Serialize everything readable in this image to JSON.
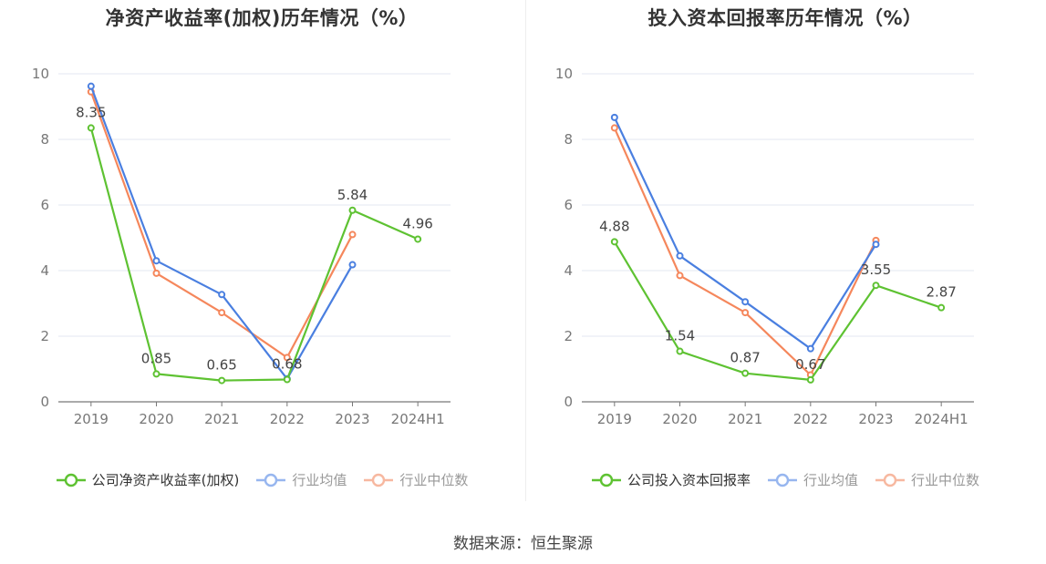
{
  "chart_data": [
    {
      "type": "line",
      "title": "净资产收益率(加权)历年情况（%）",
      "categories": [
        "2019",
        "2020",
        "2021",
        "2022",
        "2023",
        "2024H1"
      ],
      "ylim": [
        0,
        10
      ],
      "yticks": [
        0,
        2,
        4,
        6,
        8,
        10
      ],
      "grid": true,
      "legend_position": "bottom",
      "series": [
        {
          "name": "公司净资产收益率(加权)",
          "color": "#5ec232",
          "values": [
            8.35,
            0.85,
            0.65,
            0.68,
            5.84,
            4.96
          ],
          "labels": [
            "8.35",
            "0.85",
            "0.65",
            "0.68",
            "5.84",
            "4.96"
          ]
        },
        {
          "name": "行业均值",
          "color": "#4a7fe0",
          "values": [
            9.62,
            4.3,
            3.27,
            0.7,
            4.18,
            null
          ]
        },
        {
          "name": "行业中位数",
          "color": "#f5875c",
          "values": [
            9.45,
            3.92,
            2.72,
            1.35,
            5.1,
            null
          ]
        }
      ]
    },
    {
      "type": "line",
      "title": "投入资本回报率历年情况（%）",
      "categories": [
        "2019",
        "2020",
        "2021",
        "2022",
        "2023",
        "2024H1"
      ],
      "ylim": [
        0,
        10
      ],
      "yticks": [
        0,
        2,
        4,
        6,
        8,
        10
      ],
      "grid": true,
      "legend_position": "bottom",
      "series": [
        {
          "name": "公司投入资本回报率",
          "color": "#5ec232",
          "values": [
            4.88,
            1.54,
            0.87,
            0.67,
            3.55,
            2.87
          ],
          "labels": [
            "4.88",
            "1.54",
            "0.87",
            "0.67",
            "3.55",
            "2.87"
          ]
        },
        {
          "name": "行业均值",
          "color": "#4a7fe0",
          "values": [
            8.67,
            4.45,
            3.05,
            1.62,
            4.8,
            null
          ]
        },
        {
          "name": "行业中位数",
          "color": "#f5875c",
          "values": [
            8.35,
            3.85,
            2.72,
            0.82,
            4.92,
            null
          ]
        }
      ]
    }
  ],
  "source_text": "数据来源：恒生聚源"
}
